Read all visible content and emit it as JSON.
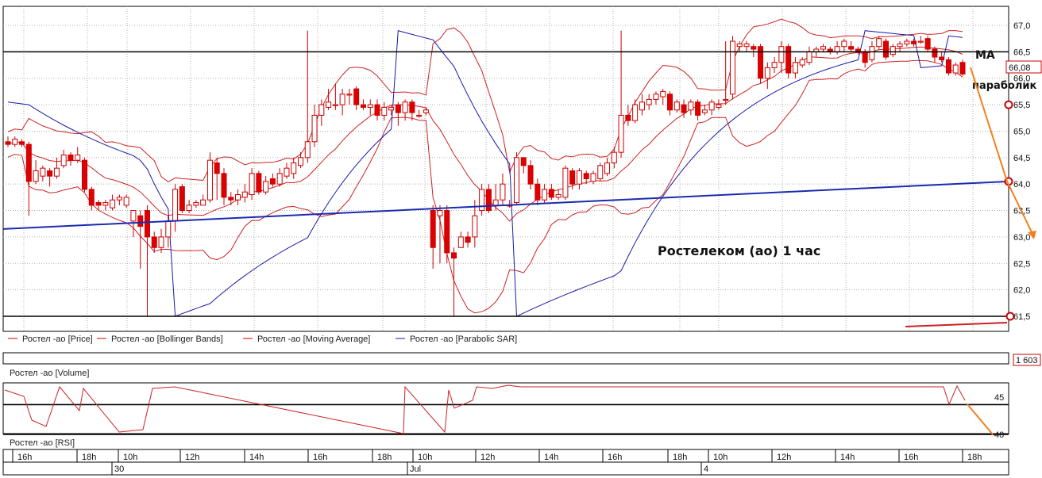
{
  "chart_data": {
    "type": "candlestick",
    "annotation_title": "Ростелеком (ао)    1 час",
    "annotations": {
      "ma": "МА",
      "parabolic": "параболик"
    },
    "price_axis": {
      "ylim": [
        61.25,
        67.25
      ],
      "ticks": [
        "61,5",
        "62,0",
        "62,5",
        "63,0",
        "63,5",
        "64,0",
        "64,5",
        "65,0",
        "65,5",
        "66,0",
        "66,5",
        "67,0"
      ]
    },
    "last_price_label": "66,08",
    "volume_label": "1 603",
    "rsi_axis": {
      "ticks": [
        "40",
        "45"
      ]
    },
    "legend": [
      {
        "name": "Ростел -ао [Price]",
        "color": "#cc0000"
      },
      {
        "name": "Ростел -ао [Bollinger Bands]",
        "color": "#cc0000"
      },
      {
        "name": "Ростел -ао [Moving Average]",
        "color": "#cc0000"
      },
      {
        "name": "Ростел -ао [Parabolic SAR]",
        "color": "#1a1aaa"
      }
    ],
    "volume_pane_label": "Ростел -ао [Volume]",
    "rsi_pane_label": "Ростел -ао [RSI]",
    "horizontal_levels": [
      66.5,
      61.5
    ],
    "rsi_levels": [
      44,
      40
    ],
    "trend_line": {
      "from": 63.15,
      "to": 64.05
    },
    "forecast_points": [
      64.05,
      63.0
    ],
    "time_labels": [
      "16h",
      "18h",
      "10h",
      "12h",
      "14h",
      "16h",
      "18h",
      "10h",
      "12h",
      "14h",
      "16h",
      "18h",
      "10h",
      "12h",
      "14h",
      "16h",
      "18h"
    ],
    "date_labels": [
      "30",
      "Jul",
      "4"
    ],
    "candles": [
      [
        64.8,
        64.75,
        64.9,
        64.7
      ],
      [
        64.75,
        64.85,
        64.9,
        64.7
      ],
      [
        64.8,
        64.75,
        64.85,
        64.7
      ],
      [
        64.75,
        64.05,
        64.8,
        63.4
      ],
      [
        64.05,
        64.25,
        64.45,
        64.0
      ],
      [
        64.15,
        64.3,
        64.35,
        64.05
      ],
      [
        64.25,
        64.15,
        64.3,
        63.95
      ],
      [
        64.15,
        64.3,
        64.5,
        64.1
      ],
      [
        64.35,
        64.55,
        64.65,
        64.3
      ],
      [
        64.55,
        64.45,
        64.6,
        64.35
      ],
      [
        64.45,
        64.55,
        64.7,
        64.4
      ],
      [
        64.45,
        63.9,
        64.5,
        63.85
      ],
      [
        63.9,
        63.6,
        63.95,
        63.5
      ],
      [
        63.65,
        63.6,
        63.7,
        63.5
      ],
      [
        63.6,
        63.65,
        63.7,
        63.5
      ],
      [
        63.55,
        63.7,
        63.8,
        63.5
      ],
      [
        63.7,
        63.75,
        63.8,
        63.6
      ],
      [
        63.6,
        63.75,
        63.8,
        63.55
      ],
      [
        63.3,
        63.5,
        63.5,
        63.0
      ],
      [
        63.4,
        63.2,
        63.5,
        62.4
      ],
      [
        63.5,
        63.0,
        63.6,
        61.5
      ],
      [
        63.0,
        62.8,
        63.1,
        62.7
      ],
      [
        62.8,
        63.0,
        63.15,
        62.7
      ],
      [
        63.0,
        63.3,
        63.4,
        62.8
      ],
      [
        63.3,
        63.9,
        64.0,
        63.1
      ],
      [
        63.95,
        63.5,
        64.0,
        63.45
      ],
      [
        63.5,
        63.6,
        63.7,
        63.45
      ],
      [
        63.6,
        63.65,
        63.7,
        63.55
      ],
      [
        63.6,
        63.7,
        63.8,
        63.6
      ],
      [
        63.7,
        64.45,
        64.6,
        63.65
      ],
      [
        64.4,
        64.2,
        64.5,
        63.7
      ],
      [
        64.2,
        63.75,
        64.3,
        63.6
      ],
      [
        63.75,
        63.7,
        63.85,
        63.6
      ],
      [
        63.7,
        63.8,
        63.9,
        63.6
      ],
      [
        63.75,
        63.85,
        64.0,
        63.65
      ],
      [
        63.8,
        64.2,
        64.3,
        63.7
      ],
      [
        64.2,
        63.85,
        64.25,
        63.8
      ],
      [
        63.85,
        64.05,
        64.15,
        63.8
      ],
      [
        64.1,
        64.0,
        64.2,
        63.95
      ],
      [
        64.0,
        64.2,
        64.3,
        63.95
      ],
      [
        64.15,
        64.3,
        64.4,
        64.1
      ],
      [
        64.2,
        64.4,
        64.5,
        64.1
      ],
      [
        64.35,
        64.5,
        64.6,
        64.3
      ],
      [
        64.5,
        64.8,
        66.9,
        64.4
      ],
      [
        64.8,
        65.3,
        65.5,
        64.7
      ],
      [
        65.3,
        65.5,
        65.6,
        65.1
      ],
      [
        65.45,
        65.55,
        65.8,
        65.4
      ],
      [
        65.5,
        65.5,
        65.9,
        65.4
      ],
      [
        65.5,
        65.7,
        65.8,
        65.3
      ],
      [
        65.7,
        65.7,
        65.8,
        65.5
      ],
      [
        65.8,
        65.5,
        65.85,
        65.4
      ],
      [
        65.5,
        65.45,
        65.6,
        65.4
      ],
      [
        65.45,
        65.5,
        65.6,
        65.3
      ],
      [
        65.5,
        65.3,
        65.6,
        65.2
      ],
      [
        65.3,
        65.45,
        65.55,
        65.2
      ],
      [
        65.4,
        65.45,
        65.5,
        65.3
      ],
      [
        65.5,
        65.35,
        65.55,
        65.1
      ],
      [
        65.35,
        65.55,
        65.6,
        65.2
      ],
      [
        65.55,
        65.35,
        65.6,
        65.2
      ],
      [
        65.3,
        65.3,
        65.4,
        65.25
      ],
      [
        65.35,
        65.4,
        65.45,
        65.3
      ],
      [
        63.5,
        62.8,
        63.6,
        62.4
      ],
      [
        63.4,
        63.5,
        63.6,
        62.5
      ],
      [
        63.5,
        62.7,
        63.6,
        62.5
      ],
      [
        62.7,
        62.6,
        62.8,
        61.5
      ],
      [
        62.8,
        63.0,
        63.1,
        62.9
      ],
      [
        63.0,
        62.9,
        63.1,
        62.8
      ],
      [
        63.0,
        63.4,
        63.7,
        62.8
      ],
      [
        63.5,
        63.9,
        64.0,
        63.4
      ],
      [
        63.9,
        63.5,
        64.0,
        63.45
      ],
      [
        63.6,
        63.7,
        64.0,
        63.5
      ],
      [
        63.7,
        64.0,
        64.2,
        63.6
      ],
      [
        63.6,
        63.6,
        63.7,
        63.55
      ],
      [
        63.65,
        64.5,
        64.6,
        63.6
      ],
      [
        64.5,
        64.35,
        64.5,
        64.2
      ],
      [
        64.35,
        64.0,
        64.45,
        63.9
      ],
      [
        64.0,
        63.7,
        64.1,
        63.6
      ],
      [
        63.7,
        63.9,
        64.0,
        63.65
      ],
      [
        63.9,
        63.75,
        64.0,
        63.7
      ],
      [
        63.75,
        63.8,
        63.9,
        63.7
      ],
      [
        63.75,
        64.3,
        64.35,
        63.7
      ],
      [
        64.25,
        64.0,
        64.3,
        63.9
      ],
      [
        64.0,
        64.25,
        64.3,
        63.9
      ],
      [
        64.2,
        64.1,
        64.25,
        64.0
      ],
      [
        64.05,
        64.2,
        64.25,
        64.0
      ],
      [
        64.1,
        64.35,
        64.4,
        64.05
      ],
      [
        64.2,
        64.4,
        64.5,
        64.15
      ],
      [
        64.4,
        64.6,
        64.7,
        64.3
      ],
      [
        64.6,
        65.3,
        66.9,
        64.5
      ],
      [
        65.3,
        65.2,
        65.5,
        65.1
      ],
      [
        65.2,
        65.5,
        65.6,
        65.15
      ],
      [
        65.4,
        65.55,
        65.7,
        65.3
      ],
      [
        65.5,
        65.6,
        65.7,
        65.4
      ],
      [
        65.6,
        65.7,
        65.75,
        65.5
      ],
      [
        65.65,
        65.75,
        65.8,
        65.5
      ],
      [
        65.7,
        65.4,
        65.75,
        65.3
      ],
      [
        65.4,
        65.55,
        65.6,
        65.35
      ],
      [
        65.5,
        65.35,
        65.6,
        65.25
      ],
      [
        65.4,
        65.55,
        65.6,
        65.3
      ],
      [
        65.55,
        65.3,
        65.6,
        65.2
      ],
      [
        65.35,
        65.4,
        65.5,
        65.3
      ],
      [
        65.4,
        65.55,
        65.6,
        65.3
      ],
      [
        65.45,
        65.5,
        65.6,
        65.4
      ],
      [
        65.6,
        65.6,
        66.7,
        65.5
      ],
      [
        65.7,
        66.7,
        66.8,
        65.6
      ],
      [
        66.6,
        66.65,
        66.7,
        66.5
      ],
      [
        66.6,
        66.65,
        66.7,
        66.5
      ],
      [
        66.6,
        66.55,
        66.65,
        66.4
      ],
      [
        66.6,
        66.0,
        66.65,
        65.9
      ],
      [
        66.0,
        66.2,
        66.3,
        65.8
      ],
      [
        66.2,
        66.3,
        66.4,
        66.1
      ],
      [
        66.3,
        66.6,
        66.7,
        66.1
      ],
      [
        66.6,
        66.1,
        66.65,
        66.0
      ],
      [
        66.1,
        66.3,
        66.4,
        66.0
      ],
      [
        66.25,
        66.35,
        66.4,
        66.2
      ],
      [
        66.3,
        66.5,
        66.6,
        66.25
      ],
      [
        66.5,
        66.55,
        66.6,
        66.4
      ],
      [
        66.55,
        66.6,
        66.65,
        66.5
      ],
      [
        66.55,
        66.5,
        66.6,
        66.45
      ],
      [
        66.5,
        66.6,
        66.7,
        66.45
      ],
      [
        66.6,
        66.7,
        66.75,
        66.5
      ],
      [
        66.6,
        66.55,
        66.7,
        66.5
      ],
      [
        66.55,
        66.5,
        66.6,
        66.45
      ],
      [
        66.5,
        66.3,
        66.55,
        66.2
      ],
      [
        66.35,
        66.6,
        66.7,
        66.3
      ],
      [
        66.6,
        66.75,
        66.8,
        66.55
      ],
      [
        66.7,
        66.4,
        66.75,
        66.35
      ],
      [
        66.45,
        66.6,
        66.65,
        66.4
      ],
      [
        66.6,
        66.65,
        66.7,
        66.5
      ],
      [
        66.65,
        66.7,
        66.75,
        66.6
      ],
      [
        66.7,
        66.65,
        66.75,
        66.6
      ],
      [
        66.7,
        66.7,
        66.8,
        66.65
      ],
      [
        66.75,
        66.55,
        66.8,
        66.5
      ],
      [
        66.55,
        66.4,
        66.6,
        66.3
      ],
      [
        66.4,
        66.35,
        66.5,
        66.3
      ],
      [
        66.35,
        66.1,
        66.4,
        66.05
      ],
      [
        66.1,
        66.25,
        66.3,
        66.05
      ],
      [
        66.3,
        66.08,
        66.35,
        66.05
      ]
    ]
  }
}
